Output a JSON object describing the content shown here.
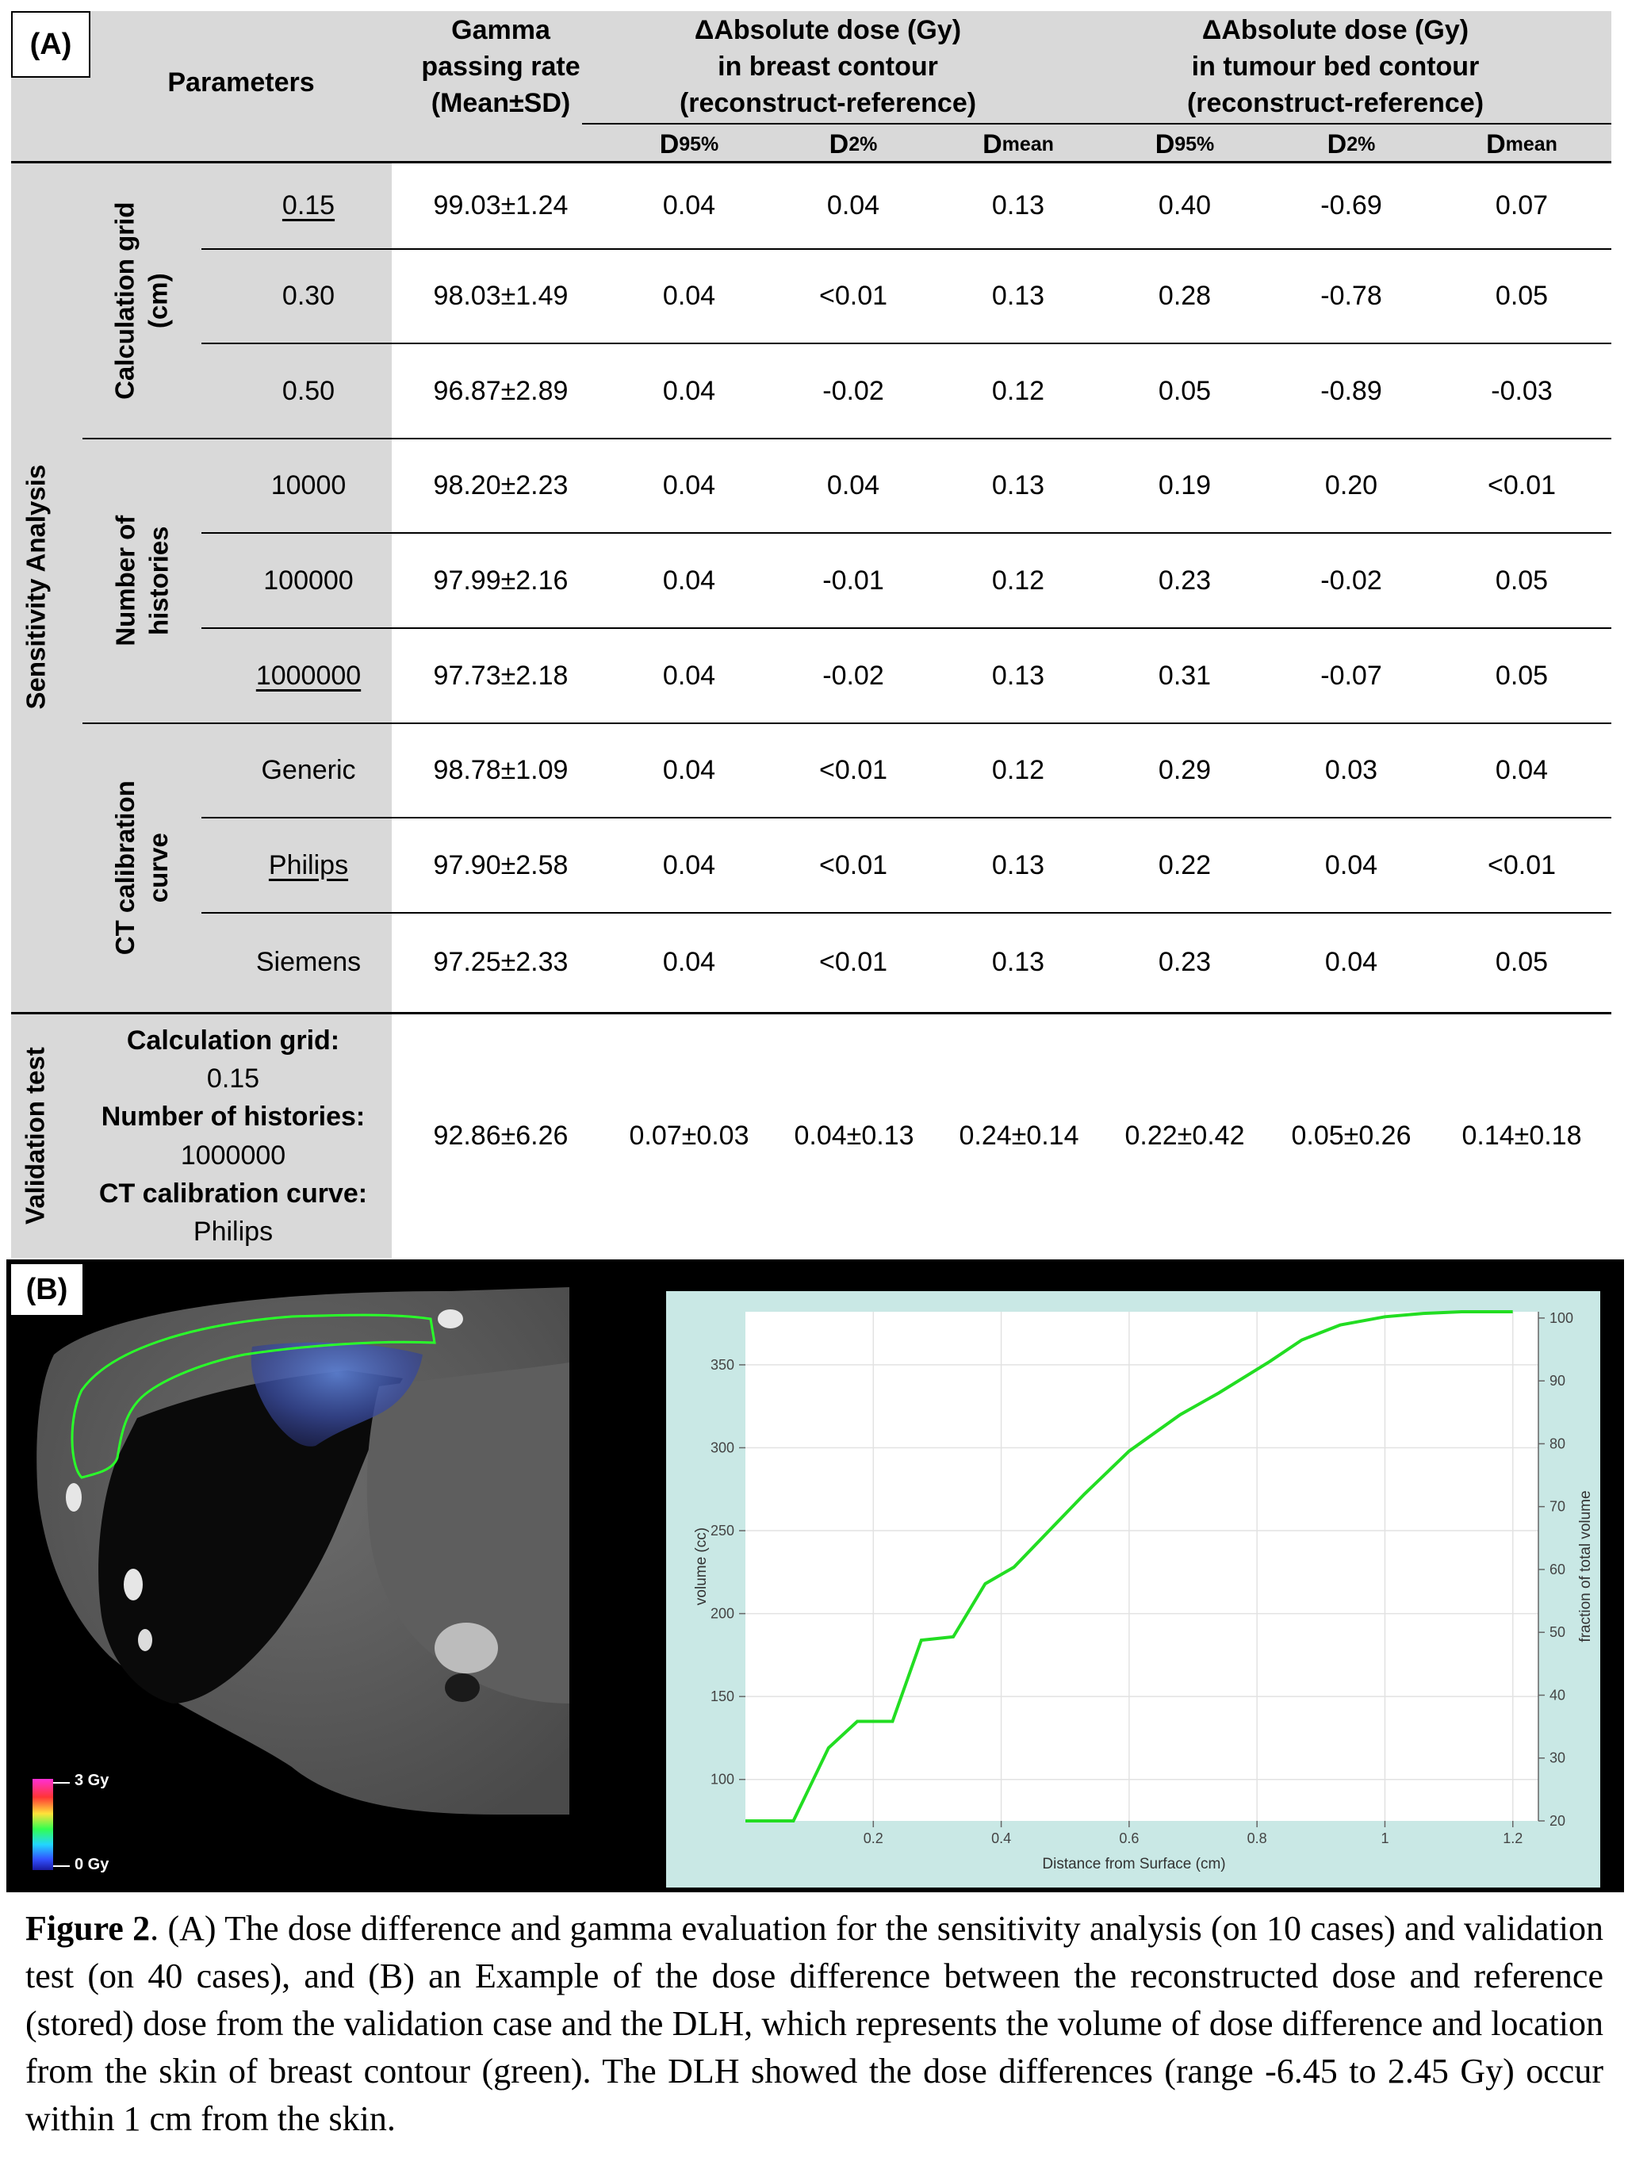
{
  "panel_a": {
    "label": "(A)",
    "headers": {
      "parameters": "Parameters",
      "gamma": "Gamma passing rate (Mean±SD)",
      "breast_group": {
        "line1": "ΔAbsolute dose (Gy)",
        "line2": "in breast contour",
        "line3": "(reconstruct-reference)"
      },
      "tumour_group": {
        "line1": "ΔAbsolute dose (Gy)",
        "line2": "in tumour bed contour",
        "line3": "(reconstruct-reference)"
      },
      "sub_cols": [
        {
          "base": "D",
          "sub": "95%"
        },
        {
          "base": "D",
          "sub": "2%"
        },
        {
          "base": "D",
          "sub": "mean"
        },
        {
          "base": "D",
          "sub": "95%"
        },
        {
          "base": "D",
          "sub": "2%"
        },
        {
          "base": "D",
          "sub": "mean"
        }
      ]
    },
    "section_labels": {
      "sensitivity": "Sensitivity Analysis",
      "validation": "Validation test"
    },
    "group_labels": {
      "calc_grid": {
        "line1": "Calculation grid",
        "line2": "(cm)"
      },
      "histories": {
        "line1": "Number of",
        "line2": "histories"
      },
      "ct_curve": {
        "line1": "CT calibration",
        "line2": "curve"
      }
    },
    "rows": [
      {
        "param": "0.15",
        "gamma": "99.03±1.24",
        "values": [
          "0.04",
          "0.04",
          "0.13",
          "0.40",
          "-0.69",
          "0.07"
        ]
      },
      {
        "param": "0.30",
        "gamma": "98.03±1.49",
        "values": [
          "0.04",
          "<0.01",
          "0.13",
          "0.28",
          "-0.78",
          "0.05"
        ]
      },
      {
        "param": "0.50",
        "gamma": "96.87±2.89",
        "values": [
          "0.04",
          "-0.02",
          "0.12",
          "0.05",
          "-0.89",
          "-0.03"
        ]
      },
      {
        "param": "10000",
        "gamma": "98.20±2.23",
        "values": [
          "0.04",
          "0.04",
          "0.13",
          "0.19",
          "0.20",
          "<0.01"
        ]
      },
      {
        "param": "100000",
        "gamma": "97.99±2.16",
        "values": [
          "0.04",
          "-0.01",
          "0.12",
          "0.23",
          "-0.02",
          "0.05"
        ]
      },
      {
        "param": "1000000",
        "gamma": "97.73±2.18",
        "values": [
          "0.04",
          "-0.02",
          "0.13",
          "0.31",
          "-0.07",
          "0.05"
        ]
      },
      {
        "param": "Generic",
        "gamma": "98.78±1.09",
        "values": [
          "0.04",
          "<0.01",
          "0.12",
          "0.29",
          "0.03",
          "0.04"
        ]
      },
      {
        "param": "Philips",
        "gamma": "97.90±2.58",
        "values": [
          "0.04",
          "<0.01",
          "0.13",
          "0.22",
          "0.04",
          "<0.01"
        ]
      },
      {
        "param": "Siemens",
        "gamma": "97.25±2.33",
        "values": [
          "0.04",
          "<0.01",
          "0.13",
          "0.23",
          "0.04",
          "0.05"
        ]
      }
    ],
    "validation": {
      "calc_grid_label": "Calculation grid:",
      "calc_grid_value": "0.15",
      "histories_label": "Number of histories:",
      "histories_value": "1000000",
      "ct_label": "CT calibration curve:",
      "ct_value": "Philips",
      "gamma": "92.86±6.26",
      "values": [
        "0.07±0.03",
        "0.04±0.13",
        "0.24±0.14",
        "0.22±0.42",
        "0.05±0.26",
        "0.14±0.18"
      ]
    }
  },
  "panel_b": {
    "label": "(B)",
    "colorbar": {
      "max_label": "3 Gy",
      "min_label": "0 Gy"
    }
  },
  "chart_data": {
    "type": "line",
    "xlabel": "Distance from Surface (cm)",
    "ylabel": "volume (cc)",
    "y2label": "fraction of total volume",
    "xlim": [
      0.0,
      1.24
    ],
    "ylim": [
      75,
      382
    ],
    "y2lim": [
      20,
      101
    ],
    "xticks": [
      0.2,
      0.4,
      0.6,
      0.8,
      1,
      1.2
    ],
    "yticks": [
      100,
      150,
      200,
      250,
      300,
      350
    ],
    "y2ticks": [
      20,
      30,
      40,
      50,
      60,
      70,
      80,
      90,
      100
    ],
    "grid": true,
    "color": "#22dd22",
    "x": [
      0.0,
      0.05,
      0.075,
      0.13,
      0.175,
      0.23,
      0.275,
      0.325,
      0.375,
      0.42,
      0.47,
      0.53,
      0.6,
      0.68,
      0.74,
      0.82,
      0.87,
      0.93,
      1.0,
      1.06,
      1.12,
      1.2
    ],
    "y": [
      75,
      75,
      75,
      119,
      135,
      135,
      184,
      186,
      218,
      228,
      248,
      272,
      298,
      320,
      333,
      352,
      365,
      374,
      379,
      381,
      382,
      382
    ]
  },
  "caption": {
    "label": "Figure 2",
    "text": ". (A) The dose difference and gamma evaluation for the sensitivity analysis (on 10 cases) and validation test (on 40 cases), and (B) an Example of the dose difference between the reconstructed dose and reference (stored) dose from the validation case and the DLH, which represents the volume of dose difference and location from the skin of breast contour (green). The DLH showed the dose differences (range -6.45 to 2.45 Gy) occur within 1 cm from the skin."
  }
}
